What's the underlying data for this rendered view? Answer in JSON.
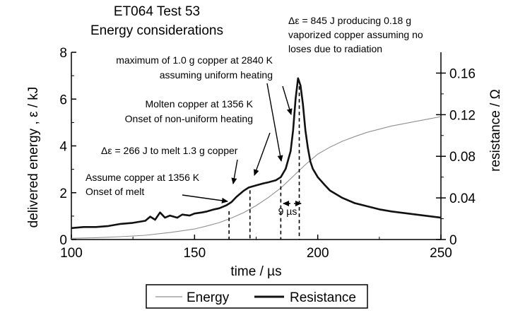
{
  "chart_data": {
    "type": "line",
    "title_lines": [
      "ET064 Test 53",
      "Energy considerations"
    ],
    "xlabel": "time / µs",
    "ylabel_left": "delivered energy , ε / kJ",
    "ylabel_right": "resistance / Ω",
    "xlim": [
      100,
      250
    ],
    "ylim_left": [
      0,
      8
    ],
    "ylim_right": [
      0,
      0.18
    ],
    "x_ticks": [
      "100",
      "150",
      "200",
      "250"
    ],
    "y_left_ticks": [
      "0",
      "2",
      "4",
      "6",
      "8"
    ],
    "y_right_ticks": [
      "0",
      "0.04",
      "0.08",
      "0.12",
      "0.16"
    ],
    "grid": false,
    "legend_position": "bottom-center",
    "series": [
      {
        "name": "Energy",
        "axis": "left",
        "color": "#909090",
        "x": [
          100,
          110,
          120,
          130,
          140,
          150,
          155,
          160,
          165,
          170,
          175,
          180,
          185,
          190,
          195,
          200,
          205,
          210,
          215,
          220,
          230,
          240,
          250
        ],
        "values": [
          0.05,
          0.08,
          0.12,
          0.18,
          0.3,
          0.45,
          0.58,
          0.72,
          0.92,
          1.15,
          1.45,
          1.8,
          2.2,
          2.7,
          3.2,
          3.65,
          3.95,
          4.2,
          4.4,
          4.58,
          4.85,
          5.05,
          5.25
        ]
      },
      {
        "name": "Resistance",
        "axis": "right",
        "color": "#111111",
        "x": [
          100,
          105,
          110,
          115,
          120,
          125,
          130,
          132,
          134,
          136,
          138,
          140,
          143,
          145,
          148,
          150,
          153,
          155,
          158,
          160,
          163,
          165,
          167,
          169,
          170,
          172,
          175,
          178,
          180,
          183,
          185,
          187,
          189,
          190,
          191,
          192,
          193,
          194,
          195,
          196,
          197,
          198,
          200,
          203,
          205,
          210,
          215,
          220,
          225,
          230,
          240,
          250
        ],
        "values": [
          0.011,
          0.012,
          0.012,
          0.013,
          0.015,
          0.016,
          0.018,
          0.022,
          0.019,
          0.026,
          0.021,
          0.023,
          0.021,
          0.024,
          0.023,
          0.025,
          0.026,
          0.027,
          0.029,
          0.03,
          0.033,
          0.036,
          0.041,
          0.045,
          0.047,
          0.05,
          0.052,
          0.054,
          0.055,
          0.057,
          0.06,
          0.068,
          0.085,
          0.105,
          0.135,
          0.155,
          0.148,
          0.13,
          0.105,
          0.088,
          0.075,
          0.068,
          0.06,
          0.052,
          0.047,
          0.04,
          0.035,
          0.032,
          0.029,
          0.027,
          0.024,
          0.021
        ]
      }
    ],
    "markers_x": [
      164,
      172.5,
      185,
      192.5
    ],
    "annotations": [
      {
        "lines": [
          "Δε = 845 J producing 0.18 g",
          "vaporized copper assuming no",
          "loses due to radiation"
        ],
        "anchor": "start"
      },
      {
        "lines": [
          "maximum of 1.0 g copper at 2840 K",
          "assuming uniform heating"
        ],
        "anchor": "end"
      },
      {
        "lines": [
          "Molten copper at 1356 K",
          "Onset of non-uniform heating"
        ],
        "anchor": "end"
      },
      {
        "lines": [
          "Δε = 266 J to melt 1.3 g copper"
        ],
        "anchor": "start"
      },
      {
        "lines": [
          "Assume copper at 1356 K",
          "Onset of melt"
        ],
        "anchor": "start"
      },
      {
        "lines": [
          "9 µs"
        ],
        "anchor": "middle"
      }
    ]
  }
}
